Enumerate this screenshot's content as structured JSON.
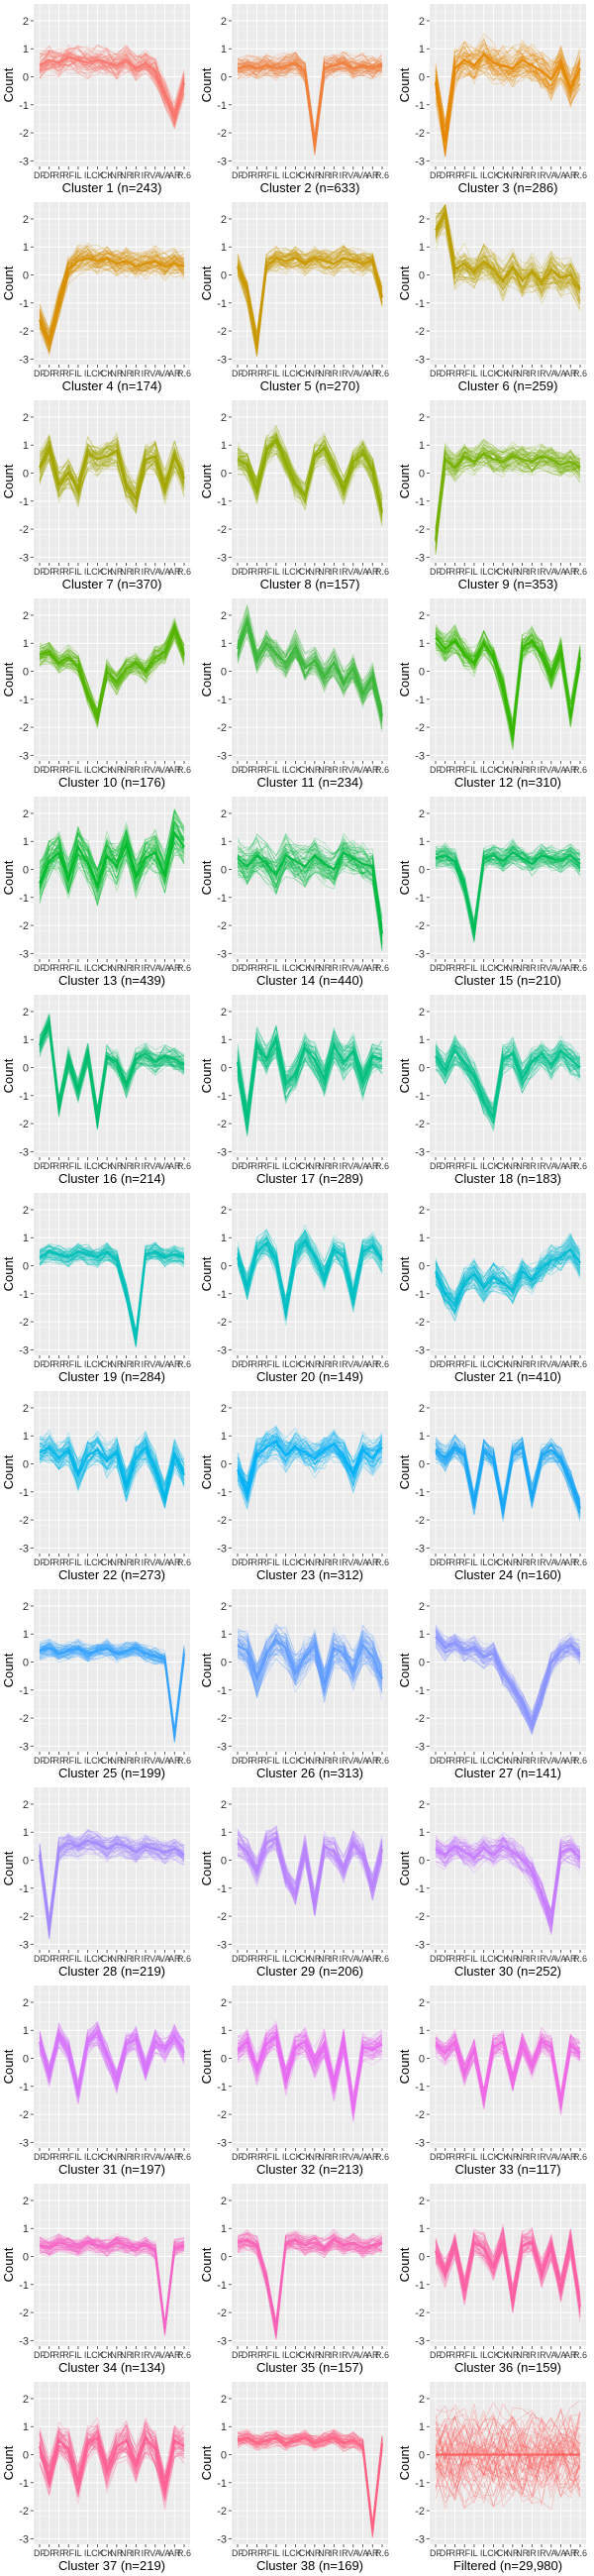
{
  "chart_data": {
    "type": "line",
    "layout": "small-multiples",
    "columns": 3,
    "ylabel": "Count",
    "ylim": [
      -3.2,
      2.6
    ],
    "yticks": [
      -3,
      -2,
      -1,
      0,
      1,
      2
    ],
    "grid": true,
    "x_tick_labels": [
      "DF",
      "DF",
      "RF",
      "RF",
      "IL",
      "IL",
      "CK",
      "CK",
      "NR",
      "NR",
      "IR",
      "IR",
      "VA",
      "VA",
      "AR",
      "R.6"
    ],
    "panels": [
      {
        "title": "Cluster 1 (n=243)",
        "color": "#F8766D",
        "profile": [
          0.4,
          0.6,
          0.5,
          0.7,
          0.6,
          0.5,
          0.6,
          0.5,
          0.4,
          0.6,
          0.3,
          0.5,
          0.2,
          -0.6,
          -1.4,
          -0.2
        ],
        "spread": 0.6
      },
      {
        "title": "Cluster 2 (n=633)",
        "color": "#F07F3A",
        "profile": [
          0.3,
          0.4,
          0.3,
          0.4,
          0.3,
          0.4,
          0.5,
          0.2,
          -2.4,
          0.3,
          0.4,
          0.5,
          0.3,
          0.4,
          0.3,
          0.4
        ],
        "spread": 0.5
      },
      {
        "title": "Cluster 3 (n=286)",
        "color": "#E58700",
        "profile": [
          -0.2,
          -2.3,
          0.3,
          0.6,
          0.4,
          0.8,
          0.5,
          0.4,
          0.3,
          0.6,
          0.4,
          0.2,
          -0.1,
          0.5,
          -0.4,
          0.3
        ],
        "spread": 0.8
      },
      {
        "title": "Cluster 4 (n=174)",
        "color": "#D89000",
        "profile": [
          -1.6,
          -2.4,
          -1.0,
          0.2,
          0.5,
          0.6,
          0.5,
          0.6,
          0.4,
          0.5,
          0.3,
          0.4,
          0.5,
          0.3,
          0.4,
          0.3
        ],
        "spread": 0.6
      },
      {
        "title": "Cluster 5 (n=270)",
        "color": "#C99800",
        "profile": [
          0.3,
          -0.6,
          -2.5,
          0.3,
          0.6,
          0.5,
          0.6,
          0.4,
          0.6,
          0.5,
          0.4,
          0.6,
          0.5,
          0.4,
          0.5,
          -0.8
        ],
        "spread": 0.5
      },
      {
        "title": "Cluster 6 (n=259)",
        "color": "#BA9E00",
        "profile": [
          1.6,
          2.2,
          0.2,
          0.4,
          0.1,
          0.5,
          0.2,
          -0.2,
          0.3,
          -0.2,
          0.1,
          -0.3,
          0.2,
          -0.1,
          0.0,
          -0.5
        ],
        "spread": 0.8
      },
      {
        "title": "Cluster 7 (n=370)",
        "color": "#A3A500",
        "profile": [
          0.2,
          0.9,
          -0.4,
          0.0,
          -0.6,
          0.7,
          0.5,
          0.6,
          0.8,
          -0.4,
          -0.9,
          0.5,
          0.6,
          -0.5,
          0.6,
          -0.2
        ],
        "spread": 0.7
      },
      {
        "title": "Cluster 8 (n=157)",
        "color": "#8DAB00",
        "profile": [
          0.5,
          0.3,
          -0.6,
          0.8,
          1.2,
          0.4,
          -0.4,
          -0.8,
          0.6,
          0.9,
          0.2,
          -0.6,
          0.4,
          0.7,
          0.1,
          -1.4
        ],
        "spread": 0.6
      },
      {
        "title": "Cluster 9 (n=353)",
        "color": "#73B000",
        "profile": [
          -2.4,
          0.5,
          0.2,
          0.6,
          0.4,
          0.7,
          0.5,
          0.4,
          0.6,
          0.5,
          0.4,
          0.6,
          0.5,
          0.3,
          0.4,
          0.2
        ],
        "spread": 0.6
      },
      {
        "title": "Cluster 10 (n=176)",
        "color": "#53B400",
        "profile": [
          0.6,
          0.7,
          0.3,
          0.5,
          0.2,
          -0.8,
          -1.6,
          0.0,
          -0.4,
          0.1,
          0.3,
          0.0,
          0.5,
          0.7,
          1.5,
          0.6
        ],
        "spread": 0.5
      },
      {
        "title": "Cluster 11 (n=234)",
        "color": "#3BB73A",
        "profile": [
          0.8,
          1.8,
          0.4,
          1.0,
          0.6,
          0.3,
          0.9,
          0.1,
          0.4,
          -0.2,
          0.3,
          -0.4,
          0.1,
          -0.8,
          -0.2,
          -1.6
        ],
        "spread": 0.6
      },
      {
        "title": "Cluster 12 (n=310)",
        "color": "#35B700",
        "profile": [
          1.2,
          0.8,
          1.1,
          0.6,
          0.3,
          1.0,
          0.5,
          -0.6,
          -2.3,
          0.8,
          1.1,
          0.6,
          -0.2,
          0.7,
          -1.6,
          0.5
        ],
        "spread": 0.6
      },
      {
        "title": "Cluster 13 (n=439)",
        "color": "#00B92A",
        "profile": [
          -0.5,
          0.3,
          0.6,
          -0.4,
          0.8,
          0.2,
          -0.6,
          0.5,
          0.1,
          0.9,
          -0.3,
          0.4,
          0.6,
          -0.2,
          1.3,
          0.8
        ],
        "spread": 0.9
      },
      {
        "title": "Cluster 14 (n=440)",
        "color": "#00BA42",
        "profile": [
          0.4,
          0.1,
          0.5,
          0.2,
          -0.2,
          0.5,
          0.3,
          0.1,
          0.5,
          0.2,
          0.0,
          0.6,
          0.4,
          0.2,
          0.1,
          -2.3
        ],
        "spread": 0.8
      },
      {
        "title": "Cluster 15 (n=210)",
        "color": "#00BC59",
        "profile": [
          0.4,
          0.5,
          0.3,
          -0.6,
          -2.2,
          0.4,
          0.5,
          0.3,
          0.6,
          0.4,
          0.2,
          0.5,
          0.4,
          0.3,
          0.5,
          0.2
        ],
        "spread": 0.5
      },
      {
        "title": "Cluster 16 (n=214)",
        "color": "#00BD6E",
        "profile": [
          0.8,
          1.6,
          -1.4,
          0.3,
          -0.8,
          0.5,
          -1.8,
          0.4,
          0.2,
          -0.6,
          0.3,
          0.5,
          0.2,
          0.4,
          0.3,
          0.1
        ],
        "spread": 0.5
      },
      {
        "title": "Cluster 17 (n=289)",
        "color": "#00BF7D",
        "profile": [
          0.2,
          -1.8,
          0.8,
          0.3,
          1.0,
          -0.6,
          -0.2,
          0.7,
          0.3,
          -0.4,
          0.8,
          0.2,
          0.6,
          -0.5,
          0.4,
          0.3
        ],
        "spread": 0.7
      },
      {
        "title": "Cluster 18 (n=183)",
        "color": "#00C08B",
        "profile": [
          0.4,
          -0.1,
          0.6,
          0.2,
          -0.3,
          -1.2,
          -1.8,
          0.3,
          0.5,
          -0.4,
          0.2,
          0.5,
          0.1,
          0.6,
          0.3,
          0.0
        ],
        "spread": 0.6
      },
      {
        "title": "Cluster 19 (n=284)",
        "color": "#00C0B8",
        "profile": [
          0.3,
          0.5,
          0.4,
          0.3,
          0.5,
          0.4,
          0.3,
          0.5,
          0.2,
          -1.0,
          -2.6,
          0.4,
          0.5,
          0.3,
          0.4,
          0.3
        ],
        "spread": 0.4
      },
      {
        "title": "Cluster 20 (n=149)",
        "color": "#00BFC4",
        "profile": [
          0.3,
          -0.8,
          0.5,
          0.8,
          0.2,
          -1.6,
          0.4,
          0.9,
          0.3,
          -0.4,
          0.6,
          0.3,
          -1.2,
          0.5,
          0.7,
          0.2
        ],
        "spread": 0.6
      },
      {
        "title": "Cluster 21 (n=410)",
        "color": "#00BBD4",
        "profile": [
          -0.2,
          -1.0,
          -1.4,
          -0.6,
          -0.3,
          -0.8,
          -0.4,
          -0.6,
          -0.9,
          -0.2,
          -0.5,
          -0.1,
          0.2,
          0.3,
          0.6,
          0.1
        ],
        "spread": 0.6
      },
      {
        "title": "Cluster 22 (n=273)",
        "color": "#00B7E8",
        "profile": [
          0.4,
          0.6,
          0.2,
          0.5,
          -0.4,
          0.3,
          0.5,
          0.1,
          0.4,
          -0.8,
          0.2,
          0.6,
          -0.2,
          -1.2,
          0.3,
          -0.4
        ],
        "spread": 0.7
      },
      {
        "title": "Cluster 23 (n=312)",
        "color": "#00B0F6",
        "profile": [
          -0.2,
          -1.0,
          0.3,
          0.6,
          0.8,
          0.3,
          0.6,
          0.4,
          0.2,
          0.5,
          0.7,
          0.3,
          -0.4,
          0.5,
          0.2,
          0.6
        ],
        "spread": 0.7
      },
      {
        "title": "Cluster 24 (n=160)",
        "color": "#19A6F5",
        "profile": [
          0.5,
          0.2,
          0.6,
          0.3,
          -1.4,
          0.5,
          0.2,
          -1.6,
          0.4,
          0.6,
          -1.2,
          0.3,
          0.5,
          0.2,
          -0.6,
          -1.6
        ],
        "spread": 0.5
      },
      {
        "title": "Cluster 25 (n=199)",
        "color": "#35A2FF",
        "profile": [
          0.4,
          0.5,
          0.3,
          0.4,
          0.5,
          0.3,
          0.4,
          0.5,
          0.3,
          0.4,
          0.5,
          0.3,
          0.2,
          0.1,
          -2.6,
          0.3
        ],
        "spread": 0.35
      },
      {
        "title": "Cluster 26 (n=313)",
        "color": "#619CFF",
        "profile": [
          0.6,
          0.4,
          -0.6,
          0.3,
          0.8,
          0.5,
          -0.4,
          0.2,
          0.6,
          -0.8,
          0.5,
          0.3,
          -0.3,
          0.6,
          0.2,
          -0.6
        ],
        "spread": 0.8
      },
      {
        "title": "Cluster 27 (n=141)",
        "color": "#8A94FF",
        "profile": [
          0.9,
          0.5,
          0.7,
          0.4,
          0.5,
          0.2,
          0.3,
          -0.4,
          -0.9,
          -1.5,
          -2.2,
          -1.2,
          0.0,
          0.4,
          0.6,
          0.3
        ],
        "spread": 0.5
      },
      {
        "title": "Cluster 28 (n=219)",
        "color": "#A58AFF",
        "profile": [
          0.2,
          -2.4,
          0.4,
          0.6,
          0.5,
          0.7,
          0.6,
          0.4,
          0.6,
          0.5,
          0.3,
          0.5,
          0.4,
          0.3,
          0.4,
          0.2
        ],
        "spread": 0.5
      },
      {
        "title": "Cluster 29 (n=206)",
        "color": "#B983FF",
        "profile": [
          0.6,
          0.3,
          -0.4,
          0.6,
          0.8,
          -0.6,
          -1.2,
          0.4,
          -1.6,
          0.5,
          0.3,
          -0.3,
          0.6,
          0.2,
          -1.0,
          0.4
        ],
        "spread": 0.6
      },
      {
        "title": "Cluster 30 (n=252)",
        "color": "#C77CFF",
        "profile": [
          0.4,
          0.2,
          0.5,
          0.3,
          0.1,
          0.4,
          0.2,
          0.5,
          0.3,
          0.0,
          -0.4,
          -1.2,
          -2.2,
          0.3,
          0.4,
          0.1
        ],
        "spread": 0.6
      },
      {
        "title": "Cluster 31 (n=197)",
        "color": "#D774FC",
        "profile": [
          0.6,
          -0.6,
          0.8,
          0.3,
          -1.2,
          0.6,
          0.9,
          0.1,
          -0.8,
          0.5,
          0.7,
          -0.4,
          0.6,
          0.3,
          0.8,
          0.2
        ],
        "spread": 0.5
      },
      {
        "title": "Cluster 32 (n=213)",
        "color": "#E76BF3",
        "profile": [
          0.3,
          0.6,
          -0.4,
          0.5,
          0.8,
          -0.8,
          0.4,
          0.6,
          -0.2,
          0.5,
          -1.0,
          0.6,
          -1.8,
          0.4,
          0.3,
          0.5
        ],
        "spread": 0.6
      },
      {
        "title": "Cluster 33 (n=117)",
        "color": "#EE6AE6",
        "profile": [
          0.5,
          0.2,
          0.6,
          -0.5,
          0.3,
          -1.4,
          0.4,
          0.6,
          -0.8,
          0.5,
          -0.3,
          0.6,
          0.4,
          -1.6,
          0.5,
          0.2
        ],
        "spread": 0.5
      },
      {
        "title": "Cluster 34 (n=134)",
        "color": "#F565C8",
        "profile": [
          0.4,
          0.3,
          0.5,
          0.4,
          0.3,
          0.5,
          0.4,
          0.3,
          0.5,
          0.4,
          0.3,
          0.4,
          0.2,
          -2.6,
          0.3,
          0.4
        ],
        "spread": 0.35
      },
      {
        "title": "Cluster 35 (n=157)",
        "color": "#F863B6",
        "profile": [
          0.5,
          0.6,
          0.4,
          -0.8,
          -2.6,
          0.5,
          0.6,
          0.4,
          0.5,
          0.3,
          0.6,
          0.4,
          0.5,
          0.3,
          0.4,
          0.5
        ],
        "spread": 0.4
      },
      {
        "title": "Cluster 36 (n=159)",
        "color": "#FB61A4",
        "profile": [
          0.2,
          -0.6,
          0.4,
          -1.2,
          0.5,
          0.3,
          -0.4,
          0.6,
          -1.6,
          0.4,
          0.5,
          -0.6,
          0.3,
          -1.2,
          0.5,
          -1.8
        ],
        "spread": 0.6
      },
      {
        "title": "Cluster 37 (n=219)",
        "color": "#FD6194",
        "profile": [
          0.3,
          -0.8,
          0.5,
          0.2,
          -1.0,
          0.4,
          0.6,
          -0.6,
          0.3,
          0.5,
          -0.4,
          0.6,
          0.2,
          -1.2,
          0.5,
          0.3
        ],
        "spread": 0.8
      },
      {
        "title": "Cluster 38 (n=169)",
        "color": "#FF6384",
        "profile": [
          0.5,
          0.6,
          0.4,
          0.5,
          0.6,
          0.4,
          0.5,
          0.6,
          0.4,
          0.5,
          0.6,
          0.4,
          0.5,
          0.3,
          -2.7,
          0.4
        ],
        "spread": 0.35
      },
      {
        "title": "Filtered (n=29,980)",
        "color": "#FF5A5A",
        "profile": [
          0.0,
          0.0,
          0.0,
          0.0,
          0.0,
          0.0,
          0.0,
          0.0,
          0.0,
          0.0,
          0.0,
          0.0,
          0.0,
          0.0,
          0.0,
          0.0
        ],
        "spread": 2.0
      }
    ]
  }
}
